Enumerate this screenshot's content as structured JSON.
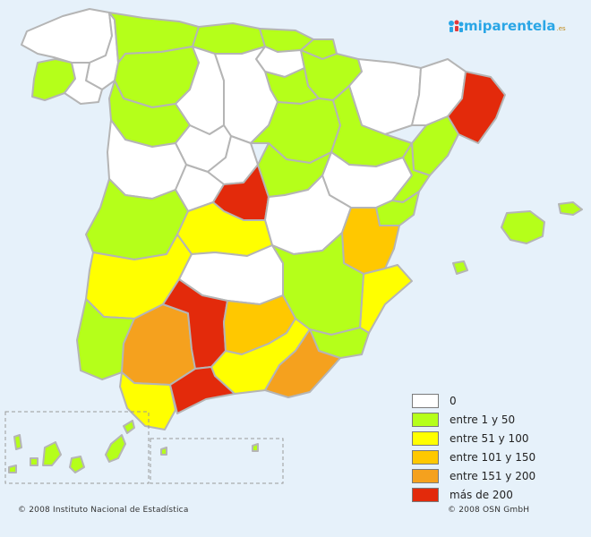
{
  "brand": {
    "name": "miparentela",
    "tld": ".es"
  },
  "colors": {
    "sea": "#e6f1fa",
    "border": "#b5b5b5",
    "class_0": "#ffffff",
    "class_1_50": "#b5ff1a",
    "class_51_100": "#ffff00",
    "class_101_150": "#ffc800",
    "class_151_200": "#f5a11e",
    "class_gt_200": "#e32a0b"
  },
  "legend": [
    {
      "key": "class_0",
      "label": "0"
    },
    {
      "key": "class_1_50",
      "label": "entre 1 y 50"
    },
    {
      "key": "class_51_100",
      "label": "entre 51 y 100"
    },
    {
      "key": "class_101_150",
      "label": "entre 101 y 150"
    },
    {
      "key": "class_151_200",
      "label": "entre 151 y 200"
    },
    {
      "key": "class_gt_200",
      "label": "más de 200"
    }
  ],
  "credits": {
    "left": "© 2008 Instituto Nacional de Estadística",
    "right": "© 2008 OSN GmbH"
  }
}
